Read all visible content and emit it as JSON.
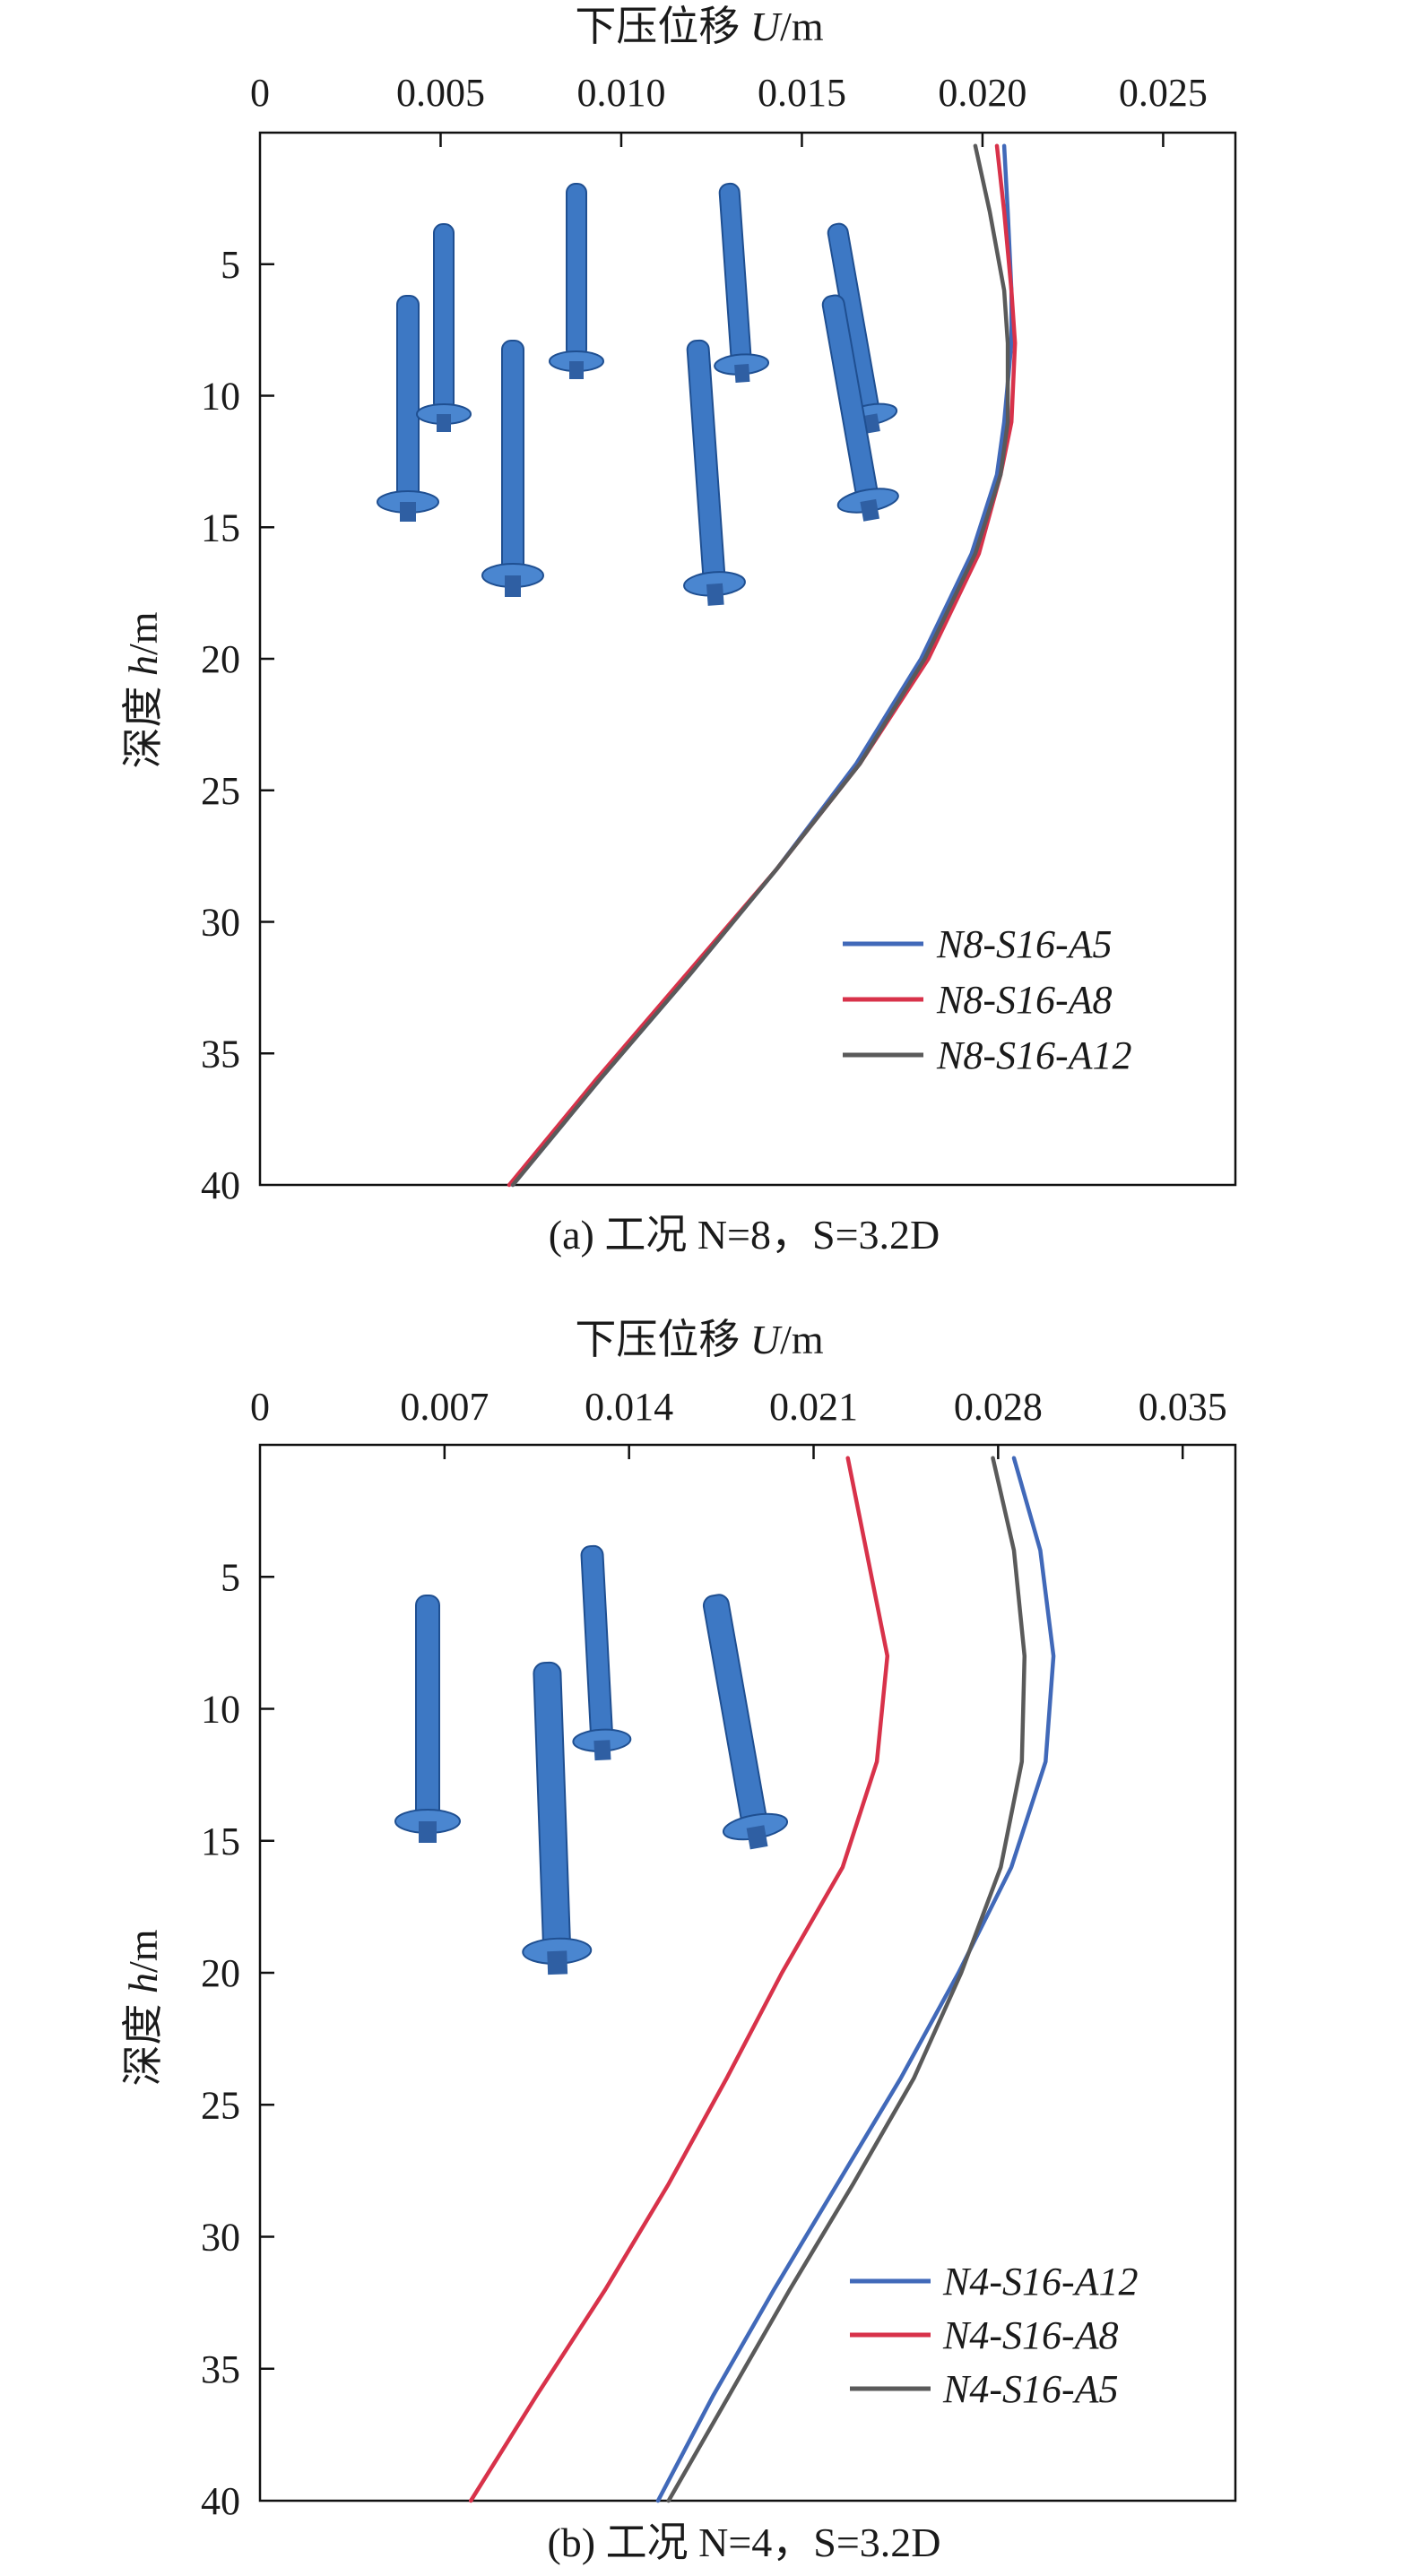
{
  "charts": [
    {
      "xlabel_cn": "下压位移 ",
      "xlabel_var": "U",
      "xlabel_unit": "/m",
      "ylabel_cn": "深度 ",
      "ylabel_var": "h",
      "ylabel_unit": "/m",
      "caption": "(a) 工况 N=8，S=3.2D",
      "legend": [
        "N8-S16-A5",
        "N8-S16-A8",
        "N8-S16-A12"
      ]
    },
    {
      "xlabel_cn": "下压位移 ",
      "xlabel_var": "U",
      "xlabel_unit": "/m",
      "ylabel_cn": "深度 ",
      "ylabel_var": "h",
      "ylabel_unit": "/m",
      "caption": "(b) 工况 N=4，S=3.2D",
      "legend": [
        "N4-S16-A12",
        "N4-S16-A8",
        "N4-S16-A5"
      ]
    }
  ],
  "colors": {
    "blue": "#4169b9",
    "red": "#d8324a",
    "gray": "#5a5a5a",
    "pile": "#3d78c4"
  },
  "chart_data": [
    {
      "type": "line",
      "title": "",
      "xlabel": "下压位移 U/m",
      "ylabel": "深度 h/m",
      "xlim": [
        0,
        0.027
      ],
      "ylim": [
        40,
        0
      ],
      "x_axis_position": "top",
      "y_inverted": true,
      "xticks": [
        0,
        0.005,
        0.01,
        0.015,
        0.02,
        0.025
      ],
      "xtick_labels": [
        "0",
        "0.005",
        "0.010",
        "0.015",
        "0.020",
        "0.025"
      ],
      "yticks": [
        5,
        10,
        15,
        20,
        25,
        30,
        35,
        40
      ],
      "grid": false,
      "legend_position": "bottom-right",
      "series": [
        {
          "name": "N8-S16-A5",
          "color": "#4169b9",
          "points": [
            [
              0.0206,
              0.5
            ],
            [
              0.0207,
              3
            ],
            [
              0.0208,
              6
            ],
            [
              0.0208,
              8
            ],
            [
              0.0206,
              11
            ],
            [
              0.0204,
              13
            ],
            [
              0.0197,
              16
            ],
            [
              0.0183,
              20
            ],
            [
              0.0165,
              24
            ],
            [
              0.0143,
              28
            ],
            [
              0.0119,
              32
            ],
            [
              0.0094,
              36
            ],
            [
              0.007,
              40
            ]
          ]
        },
        {
          "name": "N8-S16-A8",
          "color": "#d8324a",
          "points": [
            [
              0.0204,
              0.5
            ],
            [
              0.0206,
              3
            ],
            [
              0.0208,
              6
            ],
            [
              0.0209,
              8
            ],
            [
              0.0208,
              11
            ],
            [
              0.0205,
              13
            ],
            [
              0.0199,
              16
            ],
            [
              0.0185,
              20
            ],
            [
              0.0166,
              24
            ],
            [
              0.0143,
              28
            ],
            [
              0.0118,
              32
            ],
            [
              0.0093,
              36
            ],
            [
              0.0069,
              40
            ]
          ]
        },
        {
          "name": "N8-S16-A12",
          "color": "#5a5a5a",
          "points": [
            [
              0.0198,
              0.5
            ],
            [
              0.0202,
              3
            ],
            [
              0.0206,
              6
            ],
            [
              0.0207,
              8
            ],
            [
              0.0207,
              11
            ],
            [
              0.0205,
              13
            ],
            [
              0.0198,
              16
            ],
            [
              0.0184,
              20
            ],
            [
              0.0166,
              24
            ],
            [
              0.0143,
              28
            ],
            [
              0.0119,
              32
            ],
            [
              0.0094,
              36
            ],
            [
              0.007,
              40
            ]
          ]
        }
      ]
    },
    {
      "type": "line",
      "title": "",
      "xlabel": "下压位移 U/m",
      "ylabel": "深度 h/m",
      "xlim": [
        0,
        0.037
      ],
      "ylim": [
        40,
        0
      ],
      "x_axis_position": "top",
      "y_inverted": true,
      "xticks": [
        0,
        0.007,
        0.014,
        0.021,
        0.028,
        0.035
      ],
      "xtick_labels": [
        "0",
        "0.007",
        "0.014",
        "0.021",
        "0.028",
        "0.035"
      ],
      "yticks": [
        5,
        10,
        15,
        20,
        25,
        30,
        35,
        40
      ],
      "grid": false,
      "legend_position": "bottom-right",
      "series": [
        {
          "name": "N4-S16-A12",
          "color": "#4169b9",
          "points": [
            [
              0.0286,
              0.5
            ],
            [
              0.0296,
              4
            ],
            [
              0.0301,
              8
            ],
            [
              0.0298,
              12
            ],
            [
              0.0285,
              16
            ],
            [
              0.0265,
              20
            ],
            [
              0.0243,
              24
            ],
            [
              0.0219,
              28
            ],
            [
              0.0195,
              32
            ],
            [
              0.0172,
              36
            ],
            [
              0.0151,
              40
            ]
          ]
        },
        {
          "name": "N4-S16-A8",
          "color": "#d8324a",
          "points": [
            [
              0.0223,
              0.5
            ],
            [
              0.023,
              4
            ],
            [
              0.0238,
              8
            ],
            [
              0.0234,
              12
            ],
            [
              0.0221,
              16
            ],
            [
              0.0198,
              20
            ],
            [
              0.0177,
              24
            ],
            [
              0.0155,
              28
            ],
            [
              0.0131,
              32
            ],
            [
              0.0105,
              36
            ],
            [
              0.008,
              40
            ]
          ]
        },
        {
          "name": "N4-S16-A5",
          "color": "#5a5a5a",
          "points": [
            [
              0.0278,
              0.5
            ],
            [
              0.0286,
              4
            ],
            [
              0.029,
              8
            ],
            [
              0.0289,
              12
            ],
            [
              0.0281,
              16
            ],
            [
              0.0266,
              20
            ],
            [
              0.0248,
              24
            ],
            [
              0.0225,
              28
            ],
            [
              0.0201,
              32
            ],
            [
              0.0178,
              36
            ],
            [
              0.0155,
              40
            ]
          ]
        }
      ]
    }
  ]
}
